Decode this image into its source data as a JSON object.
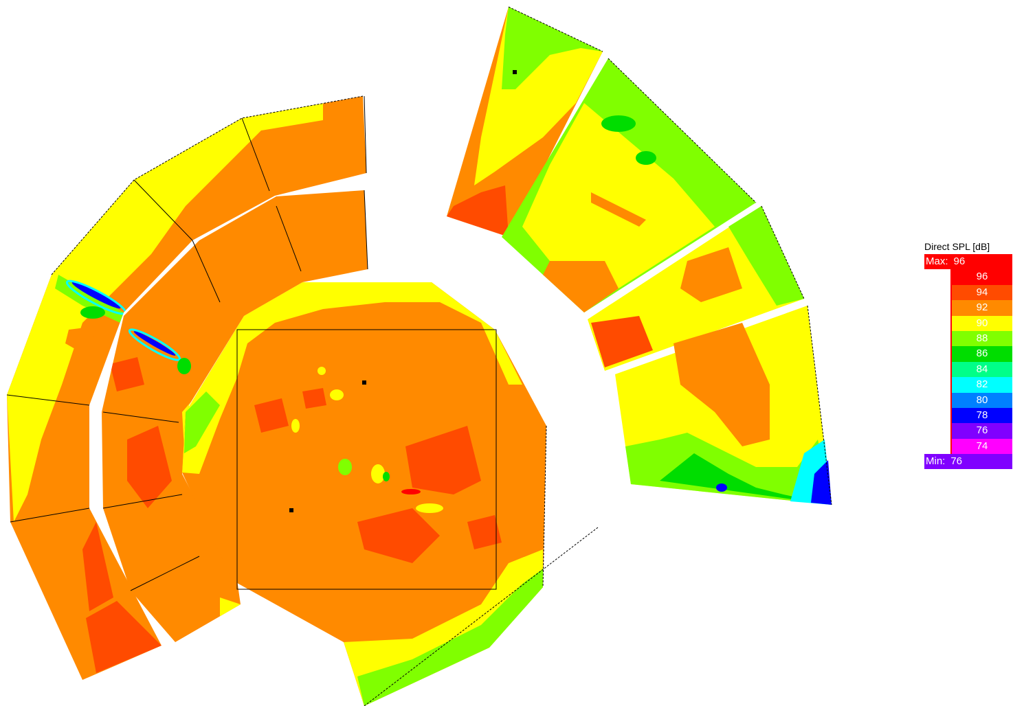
{
  "colors": {
    "c96": "#ff0000",
    "c94": "#ff4b00",
    "c92": "#ff8a00",
    "c90": "#ffff00",
    "c88": "#80ff00",
    "c86": "#00dd00",
    "c84": "#00ff88",
    "c82": "#00ffff",
    "c80": "#0080ff",
    "c78": "#0000ff",
    "c76": "#8000ff",
    "c74": "#ff00ff",
    "min": "#8000ff",
    "max": "#ff0000",
    "outline": "#000000"
  },
  "legend": {
    "title": "Direct SPL [dB]",
    "max_label": "Max:",
    "max_value": "96",
    "min_label": "Min:",
    "min_value": "76",
    "steps": [
      "96",
      "94",
      "92",
      "90",
      "88",
      "86",
      "84",
      "82",
      "80",
      "78",
      "76",
      "74"
    ],
    "step_colors": [
      "#ff0000",
      "#ff4b00",
      "#ff8a00",
      "#ffff00",
      "#80ff00",
      "#00dd00",
      "#00ff88",
      "#00ffff",
      "#0080ff",
      "#0000ff",
      "#8000ff",
      "#ff00ff"
    ]
  },
  "icons": {
    "speaker_marker": "speaker-marker-icon"
  }
}
